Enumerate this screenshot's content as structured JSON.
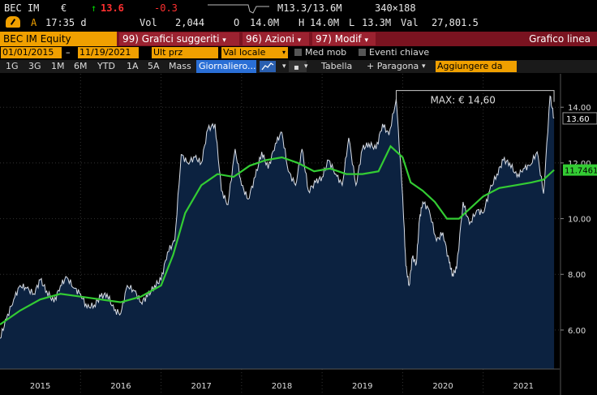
{
  "quote": {
    "ticker": "BEC IM",
    "currency": "€",
    "arrow": "↑",
    "last": "13.6",
    "change": "-0.3",
    "timeflag": "A",
    "time": "17:35 d",
    "vol_label": "Vol",
    "vol": "2,044",
    "open_label": "O",
    "open": "14.0M",
    "high_label": "H",
    "high": "14.0M",
    "low_label": "L",
    "low": "13.3M",
    "range": "M13.3/13.6M",
    "size": "340×188",
    "val_label": "Val",
    "val": "27,801.5"
  },
  "command_bar": {
    "ticker_field": "BEC IM Equity",
    "btn1_num": "99)",
    "btn1_label": "Grafici suggeriti",
    "btn2_num": "96)",
    "btn2_label": "Azioni",
    "btn3_num": "97)",
    "btn3_label": "Modif",
    "title": "Grafico linea"
  },
  "params": {
    "start_date": "01/01/2015",
    "end_date": "11/19/2021",
    "price_type": "Ult prz",
    "currency": "Val locale",
    "moving_avg": "Med mob",
    "events": "Eventi chiave"
  },
  "periods": {
    "items": [
      "1G",
      "3G",
      "1M",
      "6M",
      "YTD",
      "1A",
      "5A",
      "Mass"
    ],
    "selected": "Giornaliero...",
    "table": "Tabella",
    "compare": "+ Paragona",
    "add": "Aggiungere da"
  },
  "colors": {
    "accent_orange": "#f0a000",
    "command_bar": "#7a1320",
    "price_fill": "#0c2240",
    "moving_average": "#33cc33",
    "selected": "#2a6fd6"
  },
  "chart_data": {
    "type": "area",
    "title": "",
    "ylim": [
      4.6,
      15.2
    ],
    "yticks": [
      "6.00",
      "8.00",
      "10.00",
      "12.00",
      "14.00"
    ],
    "x_categories": [
      "2015",
      "2016",
      "2017",
      "2018",
      "2019",
      "2020",
      "2021"
    ],
    "max_annotation": "MAX: € 14,60",
    "last_price_label": "13.60",
    "ma_label": "11.7461",
    "last_price": 13.6,
    "ma_last": 11.7461,
    "max_value": 14.6,
    "series": [
      {
        "name": "price",
        "x": [
          2015.0,
          2015.08,
          2015.17,
          2015.25,
          2015.33,
          2015.42,
          2015.5,
          2015.58,
          2015.67,
          2015.75,
          2015.83,
          2015.92,
          2016.0,
          2016.08,
          2016.17,
          2016.25,
          2016.33,
          2016.42,
          2016.5,
          2016.58,
          2016.67,
          2016.75,
          2016.83,
          2016.92,
          2017.0,
          2017.08,
          2017.17,
          2017.25,
          2017.33,
          2017.42,
          2017.5,
          2017.58,
          2017.67,
          2017.75,
          2017.83,
          2017.92,
          2018.0,
          2018.08,
          2018.17,
          2018.25,
          2018.33,
          2018.42,
          2018.5,
          2018.58,
          2018.67,
          2018.75,
          2018.83,
          2018.92,
          2019.0,
          2019.08,
          2019.17,
          2019.25,
          2019.33,
          2019.42,
          2019.5,
          2019.58,
          2019.67,
          2019.75,
          2019.83,
          2019.92,
          2020.0,
          2020.04,
          2020.08,
          2020.12,
          2020.17,
          2020.21,
          2020.25,
          2020.33,
          2020.42,
          2020.5,
          2020.58,
          2020.62,
          2020.67,
          2020.75,
          2020.83,
          2020.92,
          2021.0,
          2021.08,
          2021.17,
          2021.25,
          2021.33,
          2021.42,
          2021.5,
          2021.58,
          2021.67,
          2021.75,
          2021.83,
          2021.88
        ],
        "values": [
          5.7,
          6.4,
          7.1,
          7.6,
          7.5,
          7.3,
          7.8,
          7.4,
          7.0,
          7.6,
          7.9,
          7.5,
          7.3,
          6.8,
          6.9,
          7.2,
          7.3,
          6.7,
          6.6,
          7.6,
          7.4,
          7.0,
          7.2,
          7.6,
          7.8,
          8.8,
          9.2,
          12.3,
          12.0,
          12.2,
          12.0,
          13.2,
          13.4,
          11.0,
          10.5,
          12.5,
          11.2,
          10.7,
          11.5,
          12.4,
          11.8,
          12.7,
          13.1,
          11.7,
          11.2,
          12.5,
          11.0,
          11.3,
          11.5,
          12.1,
          11.6,
          11.2,
          12.9,
          11.2,
          12.5,
          12.7,
          12.5,
          13.4,
          13.0,
          14.3,
          10.8,
          8.3,
          7.6,
          8.6,
          8.4,
          10.0,
          10.6,
          10.3,
          9.2,
          9.5,
          8.4,
          8.0,
          8.2,
          10.6,
          9.8,
          10.3,
          10.2,
          11.0,
          11.6,
          12.1,
          12.0,
          11.5,
          11.8,
          11.9,
          12.4,
          10.9,
          14.4,
          13.6
        ]
      },
      {
        "name": "moving-average",
        "x": [
          2015.0,
          2015.25,
          2015.5,
          2015.75,
          2016.0,
          2016.25,
          2016.5,
          2016.75,
          2017.0,
          2017.15,
          2017.3,
          2017.5,
          2017.7,
          2017.9,
          2018.1,
          2018.3,
          2018.5,
          2018.7,
          2018.9,
          2019.1,
          2019.3,
          2019.5,
          2019.7,
          2019.85,
          2020.0,
          2020.1,
          2020.25,
          2020.4,
          2020.55,
          2020.7,
          2020.85,
          2021.0,
          2021.2,
          2021.4,
          2021.6,
          2021.75,
          2021.88
        ],
        "values": [
          6.2,
          6.7,
          7.1,
          7.3,
          7.2,
          7.1,
          7.0,
          7.2,
          7.6,
          8.7,
          10.2,
          11.2,
          11.6,
          11.5,
          11.9,
          12.1,
          12.2,
          12.0,
          11.7,
          11.8,
          11.6,
          11.6,
          11.7,
          12.6,
          12.2,
          11.3,
          11.0,
          10.6,
          10.0,
          10.0,
          10.4,
          10.8,
          11.1,
          11.2,
          11.3,
          11.4,
          11.75
        ]
      }
    ]
  }
}
